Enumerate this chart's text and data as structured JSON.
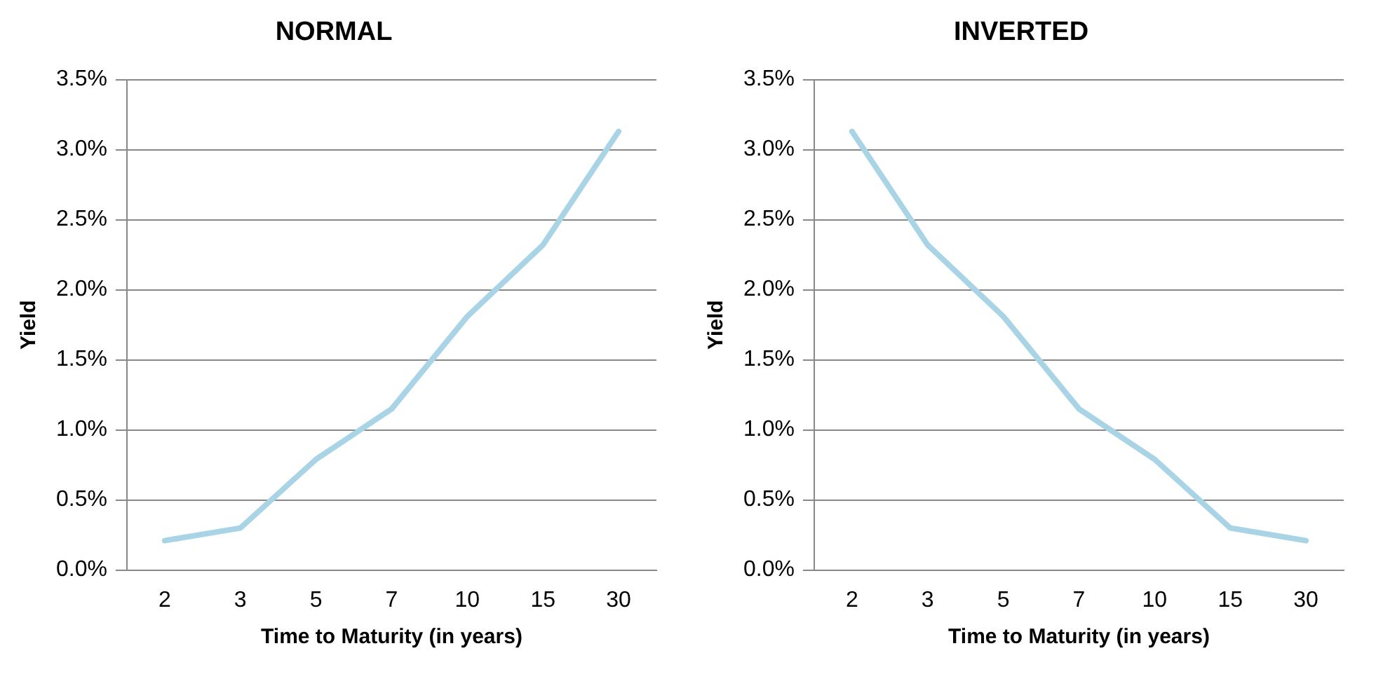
{
  "chart_data": [
    {
      "type": "line",
      "title": "NORMAL",
      "xlabel": "Time to Maturity (in years)",
      "ylabel": "Yield",
      "categories": [
        "2",
        "3",
        "5",
        "7",
        "10",
        "15",
        "30"
      ],
      "series": [
        {
          "color": "#a8d4e6",
          "values": [
            0.21,
            0.3,
            0.79,
            1.15,
            1.81,
            2.32,
            3.13
          ]
        }
      ],
      "ylim": [
        0,
        3.5
      ],
      "yticks": [
        {
          "value": 0,
          "label": "0.0%"
        },
        {
          "value": 0.5,
          "label": "0.5%"
        },
        {
          "value": 1,
          "label": "1.0%"
        },
        {
          "value": 1.5,
          "label": "1.5%"
        },
        {
          "value": 2,
          "label": "2.0%"
        },
        {
          "value": 2.5,
          "label": "2.5%"
        },
        {
          "value": 3,
          "label": "3.0%"
        },
        {
          "value": 3.5,
          "label": "3.5%"
        }
      ],
      "grid": "y",
      "marker": "none"
    },
    {
      "type": "line",
      "title": "INVERTED",
      "xlabel": "Time to Maturity (in years)",
      "ylabel": "Yield",
      "categories": [
        "2",
        "3",
        "5",
        "7",
        "10",
        "15",
        "30"
      ],
      "series": [
        {
          "color": "#a8d4e6",
          "values": [
            3.13,
            2.32,
            1.81,
            1.15,
            0.79,
            0.3,
            0.21
          ]
        }
      ],
      "ylim": [
        0,
        3.5
      ],
      "yticks": [
        {
          "value": 0,
          "label": "0.0%"
        },
        {
          "value": 0.5,
          "label": "0.5%"
        },
        {
          "value": 1,
          "label": "1.0%"
        },
        {
          "value": 1.5,
          "label": "1.5%"
        },
        {
          "value": 2,
          "label": "2.0%"
        },
        {
          "value": 2.5,
          "label": "2.5%"
        },
        {
          "value": 3,
          "label": "3.0%"
        },
        {
          "value": 3.5,
          "label": "3.5%"
        }
      ],
      "grid": "y",
      "marker": "none"
    }
  ]
}
